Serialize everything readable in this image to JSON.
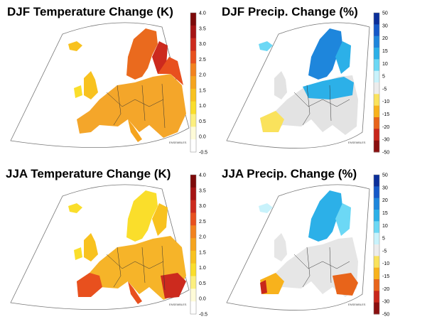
{
  "panels": [
    {
      "title": "DJF Temperature Change (K)",
      "kind": "temperature",
      "colorbar": {
        "ticks": [
          "4.0",
          "3.5",
          "3.0",
          "2.5",
          "2.0",
          "1.5",
          "1.0",
          "0.5",
          "0.0",
          "-0.5"
        ],
        "colors": [
          "#7d0a0a",
          "#a61414",
          "#cc2a1e",
          "#e8501e",
          "#f2821e",
          "#f5a41e",
          "#f8c21f",
          "#fade2b",
          "#fcef7e",
          "#fefbd8",
          "#ffffff"
        ]
      },
      "mapfill": "#f4a62a",
      "accent": "#ea6a1e"
    },
    {
      "title": "DJF Precip. Change (%)",
      "kind": "precip",
      "colorbar": {
        "ticks": [
          "50",
          "30",
          "20",
          "15",
          "10",
          "5",
          "-5",
          "-10",
          "-15",
          "-20",
          "-30",
          "-50"
        ],
        "colors": [
          "#0b2f9a",
          "#1458c8",
          "#1e86dc",
          "#2cb0e8",
          "#6cd8f5",
          "#c8f2fb",
          "#ececec",
          "#fae25c",
          "#f8b21c",
          "#e8641a",
          "#c8261a",
          "#8a0f0f"
        ]
      },
      "mapfill": "#e3e3e3",
      "accent": "#3cc4ec"
    },
    {
      "title": "JJA Temperature Change (K)",
      "kind": "temperature",
      "colorbar": {
        "ticks": [
          "4.0",
          "3.5",
          "3.0",
          "2.5",
          "2.0",
          "1.5",
          "1.0",
          "0.5",
          "0.0",
          "-0.5"
        ],
        "colors": [
          "#7d0a0a",
          "#a61414",
          "#cc2a1e",
          "#e8501e",
          "#f2821e",
          "#f5a41e",
          "#f8c21f",
          "#fade2b",
          "#fcef7e",
          "#fefbd8",
          "#ffffff"
        ]
      },
      "mapfill": "#f6b429",
      "accent": "#e44a1c"
    },
    {
      "title": "JJA Precip. Change (%)",
      "kind": "precip",
      "colorbar": {
        "ticks": [
          "50",
          "30",
          "20",
          "15",
          "10",
          "5",
          "-5",
          "-10",
          "-15",
          "-20",
          "-30",
          "-50"
        ],
        "colors": [
          "#0b2f9a",
          "#1458c8",
          "#1e86dc",
          "#2cb0e8",
          "#6cd8f5",
          "#c8f2fb",
          "#ececec",
          "#fae25c",
          "#f8b21c",
          "#e8641a",
          "#c8261a",
          "#8a0f0f"
        ]
      },
      "mapfill": "#e6e6e6",
      "accent": "#f0b020"
    }
  ]
}
